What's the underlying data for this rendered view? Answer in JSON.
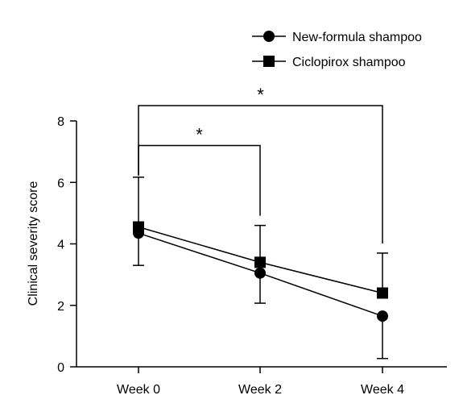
{
  "chart_data": {
    "type": "line",
    "categories": [
      "Week 0",
      "Week 2",
      "Week 4"
    ],
    "ylabel": "Clinical severity score",
    "ylim": [
      0,
      8
    ],
    "yticks": [
      0,
      2,
      4,
      6,
      8
    ],
    "grid": false,
    "legend_position": "top-right",
    "series": [
      {
        "name": "New-formula shampoo",
        "marker": "circle",
        "color": "#000000",
        "values": [
          4.35,
          3.05,
          1.65
        ],
        "error": [
          1.05,
          0.98,
          1.38
        ]
      },
      {
        "name": "Ciclopirox shampoo",
        "marker": "square",
        "color": "#000000",
        "values": [
          4.55,
          3.4,
          2.4
        ],
        "error": [
          1.62,
          1.2,
          1.3
        ]
      }
    ],
    "annotations": [
      {
        "text": "*",
        "from": "Week 0",
        "to": "Week 2",
        "level": 7.2
      },
      {
        "text": "*",
        "from": "Week 0",
        "to": "Week 4",
        "level": 8.5
      }
    ]
  }
}
